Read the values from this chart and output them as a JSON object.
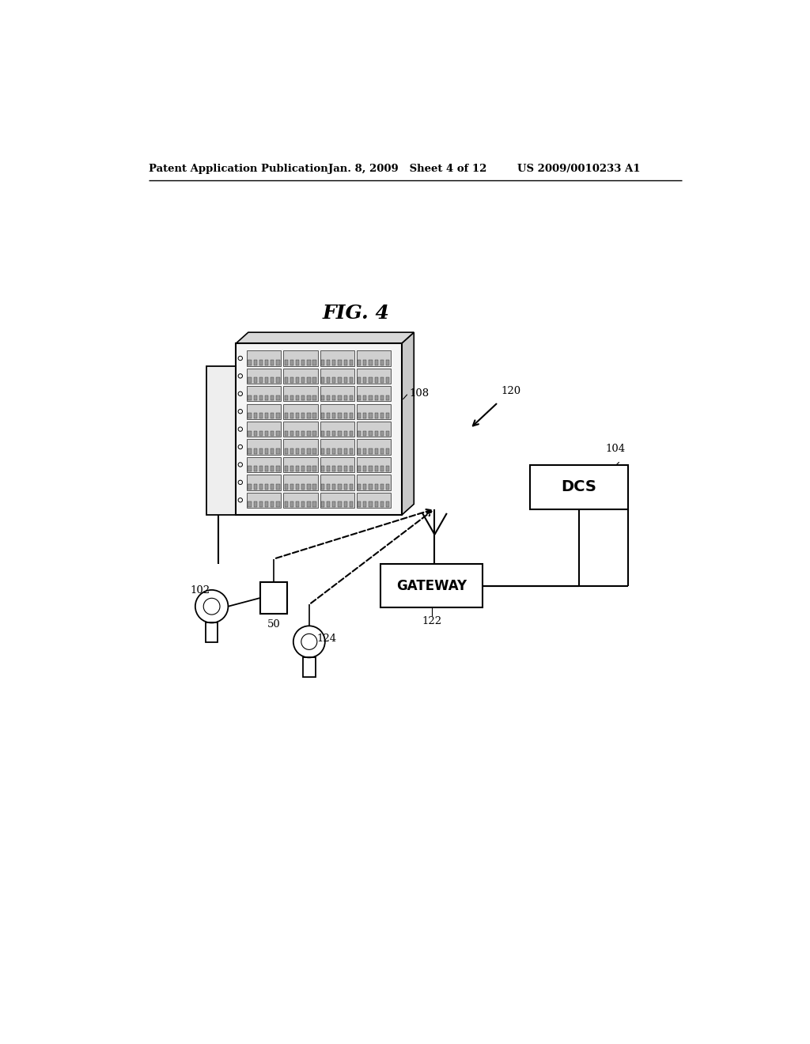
{
  "bg_color": "#ffffff",
  "header_left": "Patent Application Publication",
  "header_mid": "Jan. 8, 2009   Sheet 4 of 12",
  "header_right": "US 2009/0010233 A1",
  "fig_label": "FIG. 4",
  "fig_w": 1024,
  "fig_h": 1320
}
